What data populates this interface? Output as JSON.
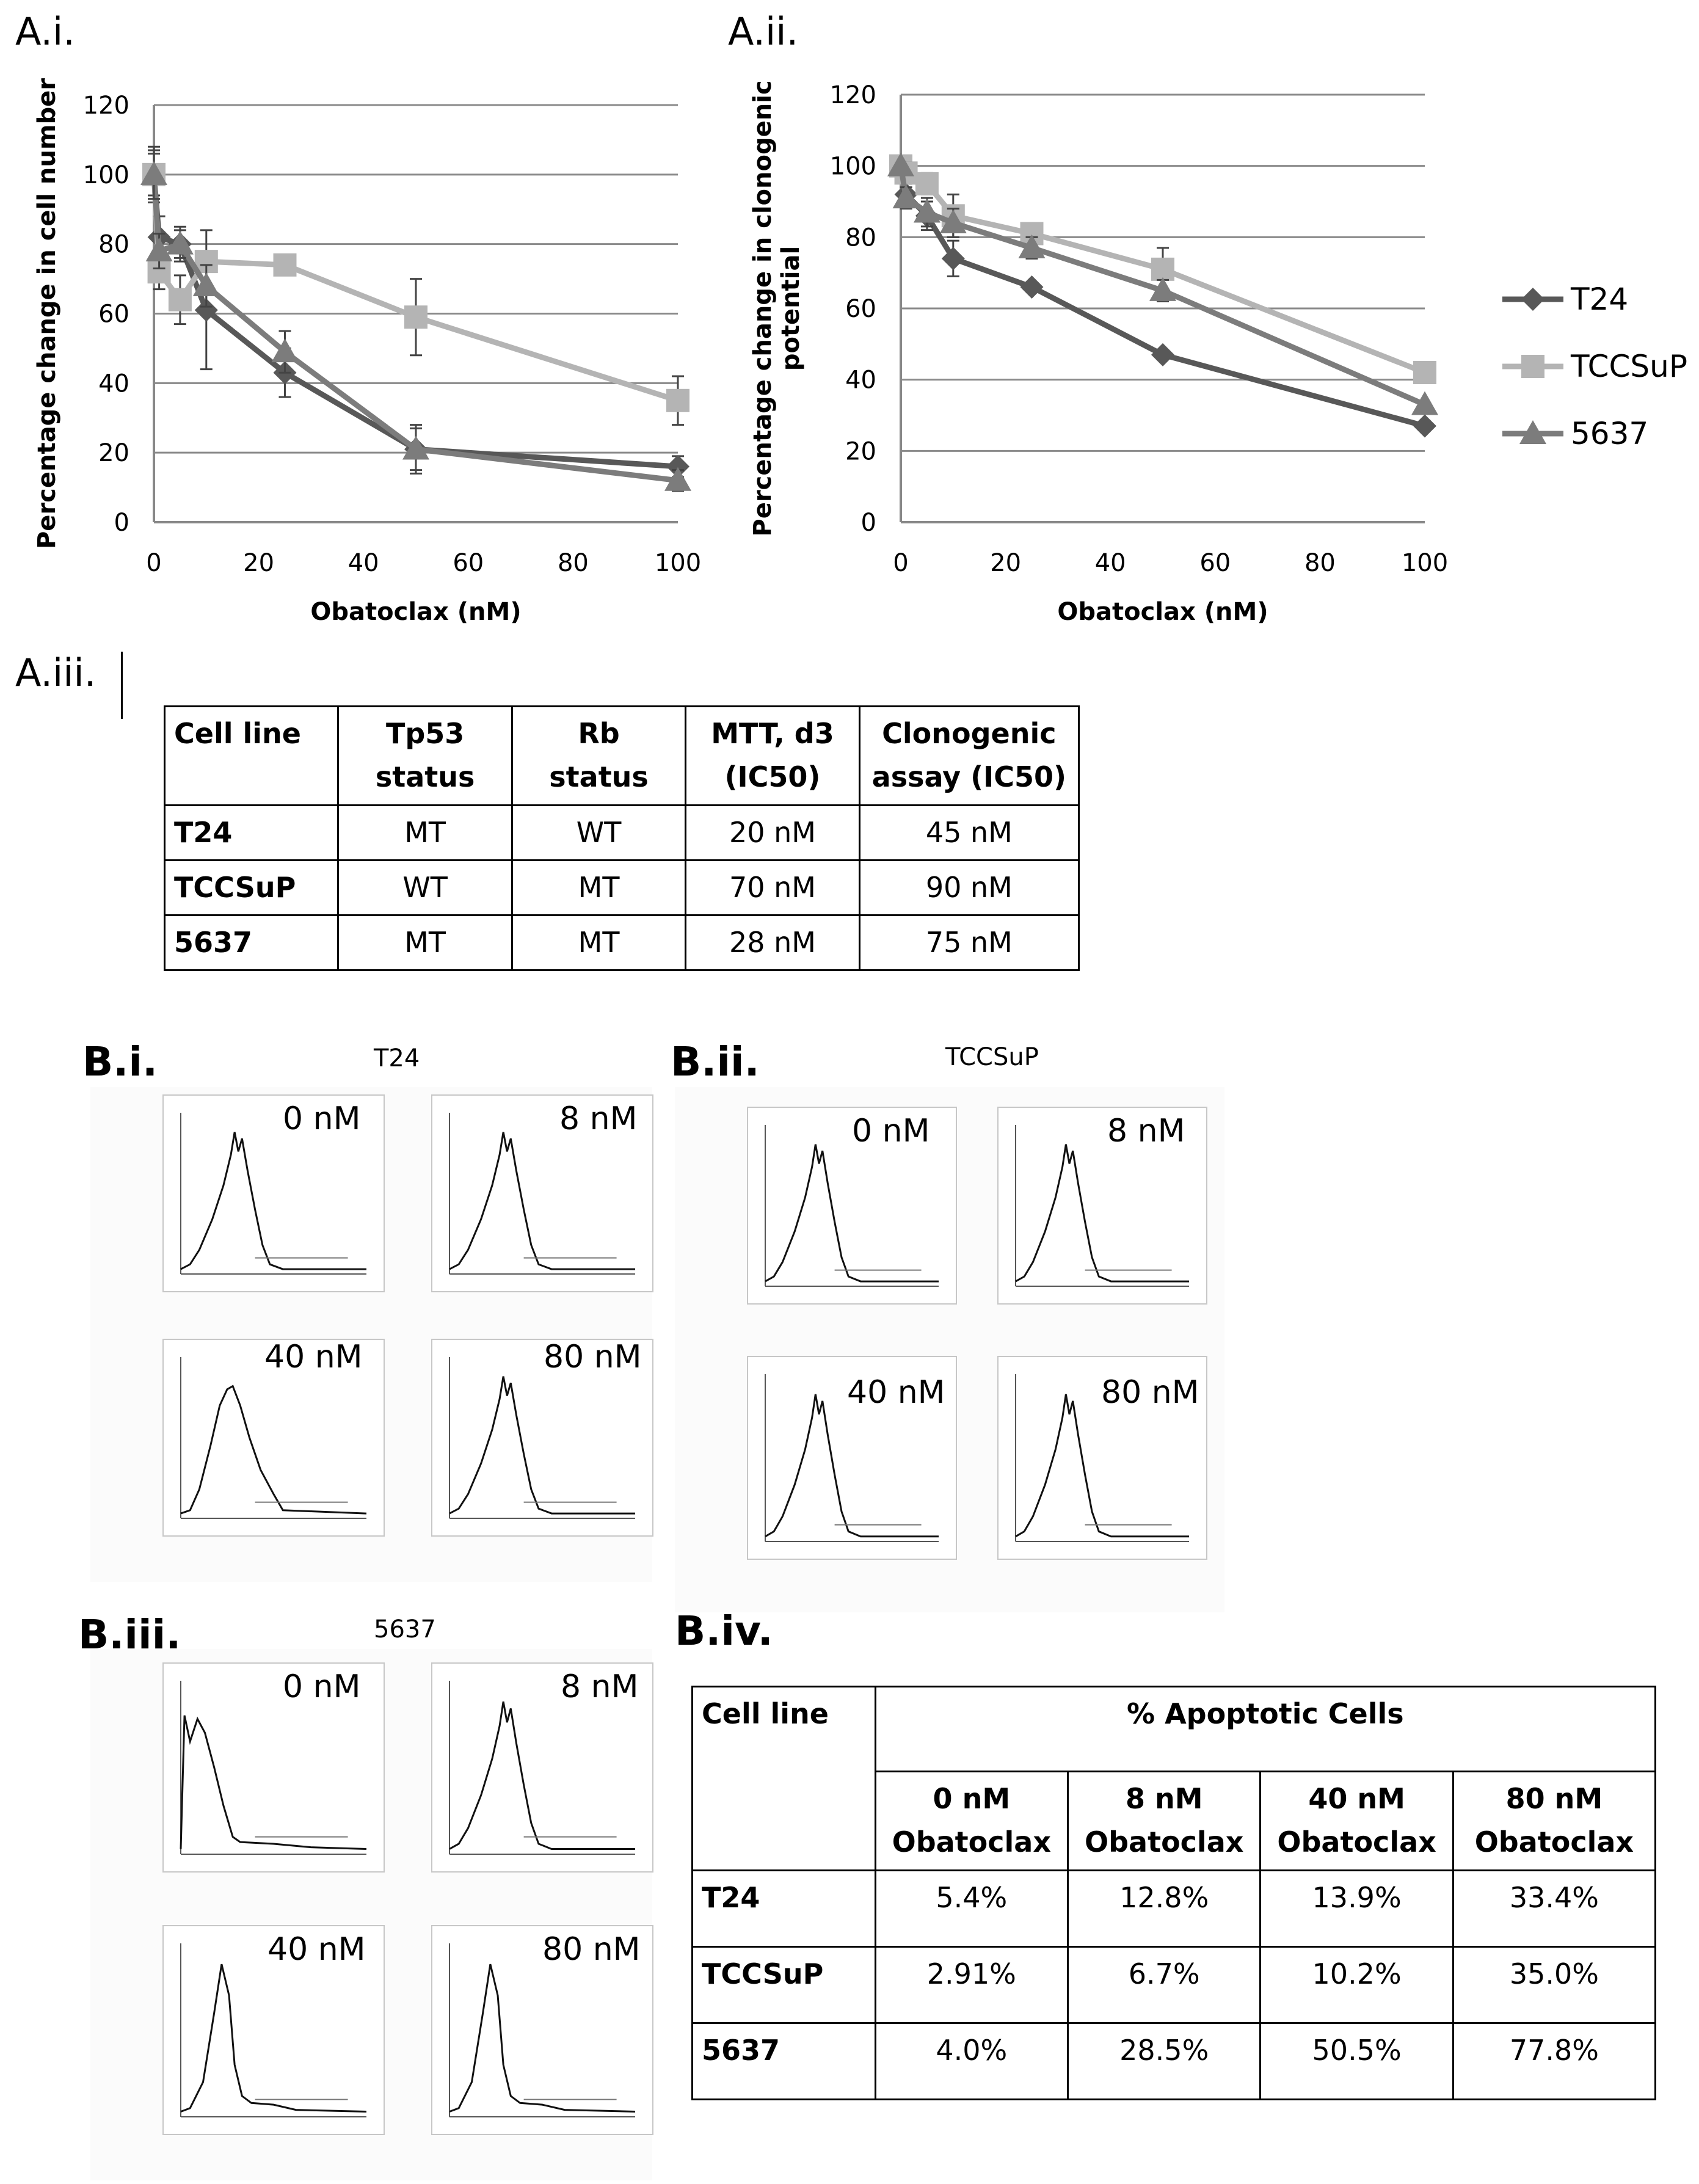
{
  "panels": {
    "a_i": "A.i.",
    "a_ii": "A.ii.",
    "a_iii": "A.iii.",
    "b_i": "B.i.",
    "b_ii": "B.ii.",
    "b_iii": "B.iii.",
    "b_iv": "B.iv."
  },
  "chart_data": [
    {
      "type": "line",
      "panel": "A.i.",
      "xlabel": "Obatoclax (nM)",
      "ylabel": "Percentage change in cell number",
      "xlim": [
        0,
        100
      ],
      "ylim": [
        0,
        120
      ],
      "xticks": [
        0,
        20,
        40,
        60,
        80,
        100
      ],
      "yticks": [
        0,
        20,
        40,
        60,
        80,
        100,
        120
      ],
      "grid": "horizontal",
      "series": [
        {
          "name": "T24",
          "marker": "diamond",
          "color": "#585858",
          "x": [
            0,
            1,
            5,
            10,
            25,
            50,
            100
          ],
          "y": [
            100,
            82,
            80,
            61,
            43,
            21,
            16
          ],
          "err": [
            8,
            6,
            5,
            17,
            7,
            7,
            3
          ]
        },
        {
          "name": "TCCSuP",
          "marker": "square",
          "color": "#b4b4b4",
          "x": [
            0,
            1,
            5,
            10,
            25,
            50,
            100
          ],
          "y": [
            100,
            72,
            64,
            75,
            74,
            59,
            35
          ],
          "err": [
            6,
            5,
            7,
            9,
            3,
            11,
            7
          ]
        },
        {
          "name": "5637",
          "marker": "triangle",
          "color": "#7c7c7c",
          "x": [
            0,
            1,
            5,
            10,
            25,
            50,
            100
          ],
          "y": [
            100,
            78,
            80,
            68,
            49,
            21,
            12
          ],
          "err": [
            7,
            5,
            4,
            6,
            6,
            6,
            3
          ]
        }
      ]
    },
    {
      "type": "line",
      "panel": "A.ii.",
      "xlabel": "Obatoclax (nM)",
      "ylabel": "Percentage change in clonogenic potential",
      "ylabel_lines": [
        "Percentage change in clonogenic",
        "potential"
      ],
      "xlim": [
        0,
        100
      ],
      "ylim": [
        0,
        120
      ],
      "xticks": [
        0,
        20,
        40,
        60,
        80,
        100
      ],
      "yticks": [
        0,
        20,
        40,
        60,
        80,
        100,
        120
      ],
      "grid": "horizontal",
      "legend": "right",
      "series": [
        {
          "name": "T24",
          "marker": "diamond",
          "color": "#585858",
          "x": [
            0,
            1,
            5,
            10,
            25,
            50,
            100
          ],
          "y": [
            100,
            92,
            86,
            74,
            66,
            47,
            27
          ],
          "err": [
            0,
            3,
            4,
            5,
            0,
            0,
            0
          ]
        },
        {
          "name": "TCCSuP",
          "marker": "square",
          "color": "#b4b4b4",
          "x": [
            0,
            1,
            5,
            10,
            25,
            50,
            100
          ],
          "y": [
            100,
            98,
            95,
            86,
            81,
            71,
            42
          ],
          "err": [
            0,
            3,
            3,
            6,
            2,
            6,
            0
          ]
        },
        {
          "name": "5637",
          "marker": "triangle",
          "color": "#7c7c7c",
          "x": [
            0,
            1,
            5,
            10,
            25,
            50,
            100
          ],
          "y": [
            100,
            91,
            87,
            84,
            77,
            65,
            33
          ],
          "err": [
            0,
            3,
            4,
            4,
            3,
            3,
            0
          ]
        }
      ]
    },
    {
      "type": "table",
      "panel": "A.iii.",
      "headers": [
        [
          "Cell line"
        ],
        [
          "Tp53",
          "status"
        ],
        [
          "Rb",
          "status"
        ],
        [
          "MTT, d3",
          "(IC50)"
        ],
        [
          "Clonogenic",
          "assay (IC50)"
        ]
      ],
      "rows": [
        [
          "T24",
          "MT",
          "WT",
          "20 nM",
          "45 nM"
        ],
        [
          "TCCSuP",
          "WT",
          "MT",
          "70 nM",
          "90 nM"
        ],
        [
          "5637",
          "MT",
          "MT",
          "28 nM",
          "75 nM"
        ]
      ]
    },
    {
      "type": "table",
      "panel": "B.iv.",
      "corner": "Cell line",
      "group_header": "% Apoptotic Cells",
      "headers": [
        [
          "0 nM",
          "Obatoclax"
        ],
        [
          "8 nM",
          "Obatoclax"
        ],
        [
          "40 nM",
          "Obatoclax"
        ],
        [
          "80 nM",
          "Obatoclax"
        ]
      ],
      "rows": [
        [
          "T24",
          "5.4%",
          "12.8%",
          "13.9%",
          "33.4%"
        ],
        [
          "TCCSuP",
          "2.91%",
          "6.7%",
          "10.2%",
          "35.0%"
        ],
        [
          "5637",
          "4.0%",
          "28.5%",
          "50.5%",
          "77.8%"
        ]
      ]
    }
  ],
  "facs": {
    "b_i": {
      "title": "T24",
      "concs": [
        "0 nM",
        "8 nM",
        "40 nM",
        "80 nM"
      ]
    },
    "b_ii": {
      "title": "TCCSuP",
      "concs": [
        "0 nM",
        "8 nM",
        "40 nM",
        "80 nM"
      ]
    },
    "b_iii": {
      "title": "5637",
      "concs": [
        "0 nM",
        "8 nM",
        "40 nM",
        "80 nM"
      ]
    }
  }
}
